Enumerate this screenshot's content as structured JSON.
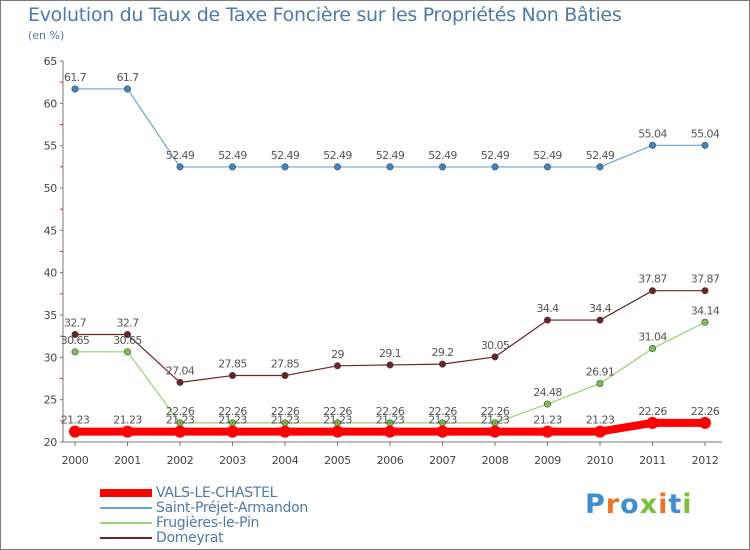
{
  "title": "Evolution du Taux de Taxe Foncière sur les Propriétés Non Bâties",
  "unit": "(en %)",
  "brand": {
    "text": "Proxiti",
    "colors": [
      "#3f8fcf",
      "#e8742a",
      "#3f8fcf",
      "#7cbf3f",
      "#e8742a",
      "#3f8fcf",
      "#7cbf3f"
    ]
  },
  "chart_data": {
    "type": "line",
    "title": "Evolution du Taux de Taxe Foncière sur les Propriétés Non Bâties",
    "ylabel": "(en %)",
    "xlabel": "",
    "ylim": [
      20,
      65
    ],
    "yticks": [
      20,
      25,
      30,
      35,
      40,
      45,
      50,
      55,
      60,
      65
    ],
    "grid": false,
    "categories": [
      "2000",
      "2001",
      "2002",
      "2003",
      "2004",
      "2005",
      "2006",
      "2007",
      "2008",
      "2009",
      "2010",
      "2011",
      "2012"
    ],
    "series": [
      {
        "name": "VALS-LE-CHASTEL",
        "color": "#ff0000",
        "marker": "#ff0000",
        "width": 8,
        "r": 6,
        "values": [
          21.23,
          21.23,
          21.23,
          21.23,
          21.23,
          21.23,
          21.23,
          21.23,
          21.23,
          21.23,
          21.23,
          22.26,
          22.26
        ],
        "labels": [
          "21.23",
          "21.23",
          "21.23",
          "21.23",
          "21.23",
          "21.23",
          "21.23",
          "21.23",
          "21.23",
          "21.23",
          "21.23",
          "22.26",
          "22.26"
        ]
      },
      {
        "name": "Saint-Préjet-Armandon",
        "color": "#6fa3d4",
        "marker": "#3a86c6",
        "width": 1.2,
        "r": 3.2,
        "values": [
          61.7,
          61.7,
          52.49,
          52.49,
          52.49,
          52.49,
          52.49,
          52.49,
          52.49,
          52.49,
          52.49,
          55.04,
          55.04
        ],
        "labels": [
          "61.7",
          "61.7",
          "52.49",
          "52.49",
          "52.49",
          "52.49",
          "52.49",
          "52.49",
          "52.49",
          "52.49",
          "52.49",
          "55.04",
          "55.04"
        ]
      },
      {
        "name": "Frugières-le-Pin",
        "color": "#95d46f",
        "marker": "#7cc24a",
        "width": 1.2,
        "r": 3.2,
        "values": [
          30.65,
          30.65,
          22.26,
          22.26,
          22.26,
          22.26,
          22.26,
          22.26,
          22.26,
          24.48,
          26.91,
          31.04,
          34.14
        ],
        "labels": [
          "30.65",
          "30.65",
          "22.26",
          "22.26",
          "22.26",
          "22.26",
          "22.26",
          "22.26",
          "22.26",
          "24.48",
          "26.91",
          "31.04",
          "34.14"
        ]
      },
      {
        "name": "Domeyrat",
        "color": "#6b2323",
        "marker": "#6b2323",
        "width": 1.2,
        "r": 3.2,
        "values": [
          32.7,
          32.7,
          27.04,
          27.85,
          27.85,
          29,
          29.1,
          29.2,
          30.05,
          34.4,
          34.4,
          37.87,
          37.87
        ],
        "labels": [
          "32.7",
          "32.7",
          "27.04",
          "27.85",
          "27.85",
          "29",
          "29.1",
          "29.2",
          "30.05",
          "34.4",
          "34.4",
          "37.87",
          "37.87"
        ]
      }
    ]
  }
}
